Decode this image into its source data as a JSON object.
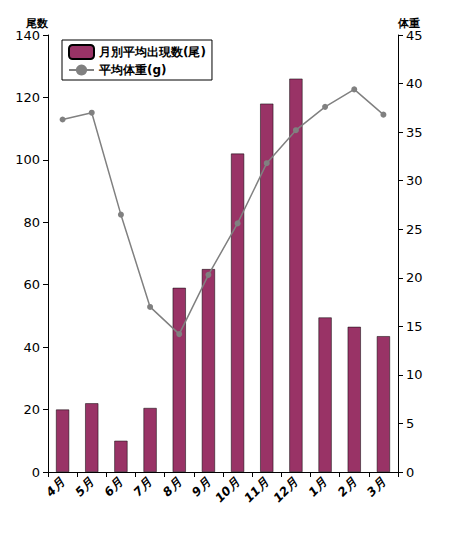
{
  "chart_data": {
    "type": "bar",
    "categories": [
      "4月",
      "5月",
      "6月",
      "7月",
      "8月",
      "9月",
      "10月",
      "11月",
      "12月",
      "1月",
      "2月",
      "3月"
    ],
    "series": [
      {
        "name": "月別平均出現数(尾)",
        "type": "bar",
        "color": "#993366",
        "values": [
          20,
          22,
          10,
          20.5,
          59,
          65,
          102,
          118,
          126,
          49.5,
          46.5,
          43.5
        ]
      },
      {
        "name": "平均体重(g)",
        "type": "line",
        "axis": "y2",
        "color": "#808080",
        "marker": "circle",
        "values": [
          36.3,
          37,
          26.5,
          17,
          14.2,
          20.3,
          25.6,
          31.8,
          35.2,
          37.6,
          39.4,
          36.8
        ]
      }
    ],
    "ylabel": "尾数",
    "y2label": "体重",
    "ylim": [
      0,
      140
    ],
    "yticks": [
      0,
      20,
      40,
      60,
      80,
      100,
      120,
      140
    ],
    "y2lim": [
      0,
      45
    ],
    "y2ticks": [
      0,
      5,
      10,
      15,
      20,
      25,
      30,
      35,
      40,
      45
    ],
    "legend": "upper left",
    "grid": false
  }
}
